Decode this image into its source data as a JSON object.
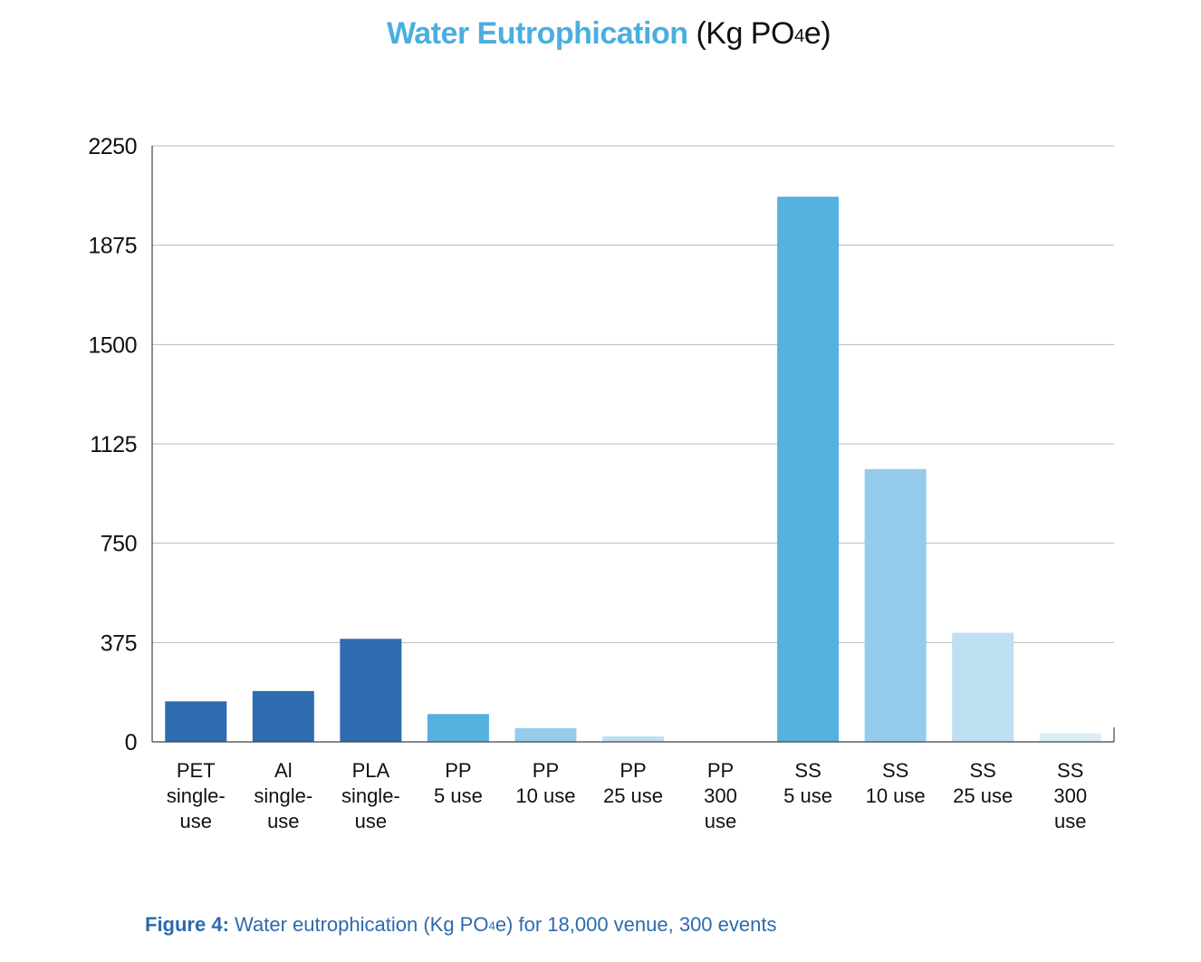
{
  "chart_data": {
    "type": "bar",
    "title": "Water Eutrophication",
    "title_unit": "(Kg PO4e)",
    "title_unit_parts": {
      "prefix": "(Kg PO",
      "sub": "4",
      "suffix": "e)"
    },
    "xlabel": "",
    "ylabel": "",
    "ylim": [
      0,
      2250
    ],
    "yticks": [
      "2250",
      "1875",
      "1500",
      "1125",
      "750",
      "375",
      "0"
    ],
    "ytick_values": [
      2250,
      1875,
      1500,
      1125,
      750,
      375,
      0
    ],
    "grid": true,
    "categories": [
      [
        "PET",
        "single-",
        "use"
      ],
      [
        "Al",
        "single-",
        "use"
      ],
      [
        "PLA",
        "single-",
        "use"
      ],
      [
        "PP",
        "5 use"
      ],
      [
        "PP",
        "10 use"
      ],
      [
        "PP",
        "25 use"
      ],
      [
        "PP",
        "300",
        "use"
      ],
      [
        "SS",
        "5 use"
      ],
      [
        "SS",
        "10 use"
      ],
      [
        "SS",
        "25 use"
      ],
      [
        "SS",
        "300",
        "use"
      ]
    ],
    "values": [
      153,
      192,
      389,
      105,
      52,
      21,
      2,
      2058,
      1030,
      412,
      32
    ],
    "bar_colors": [
      "#2f6bb0",
      "#2f6bb0",
      "#2f6bb0",
      "#56b1df",
      "#96cceb",
      "#bfdff2",
      "#e2f0f9",
      "#56b1df",
      "#96cceb",
      "#bfdff2",
      "#dbeef8"
    ]
  },
  "caption": {
    "label": "Figure 4:",
    "text_prefix": "Water eutrophication (Kg PO",
    "text_sub": "4",
    "text_suffix": "e) for 18,000 venue, 300 events"
  }
}
